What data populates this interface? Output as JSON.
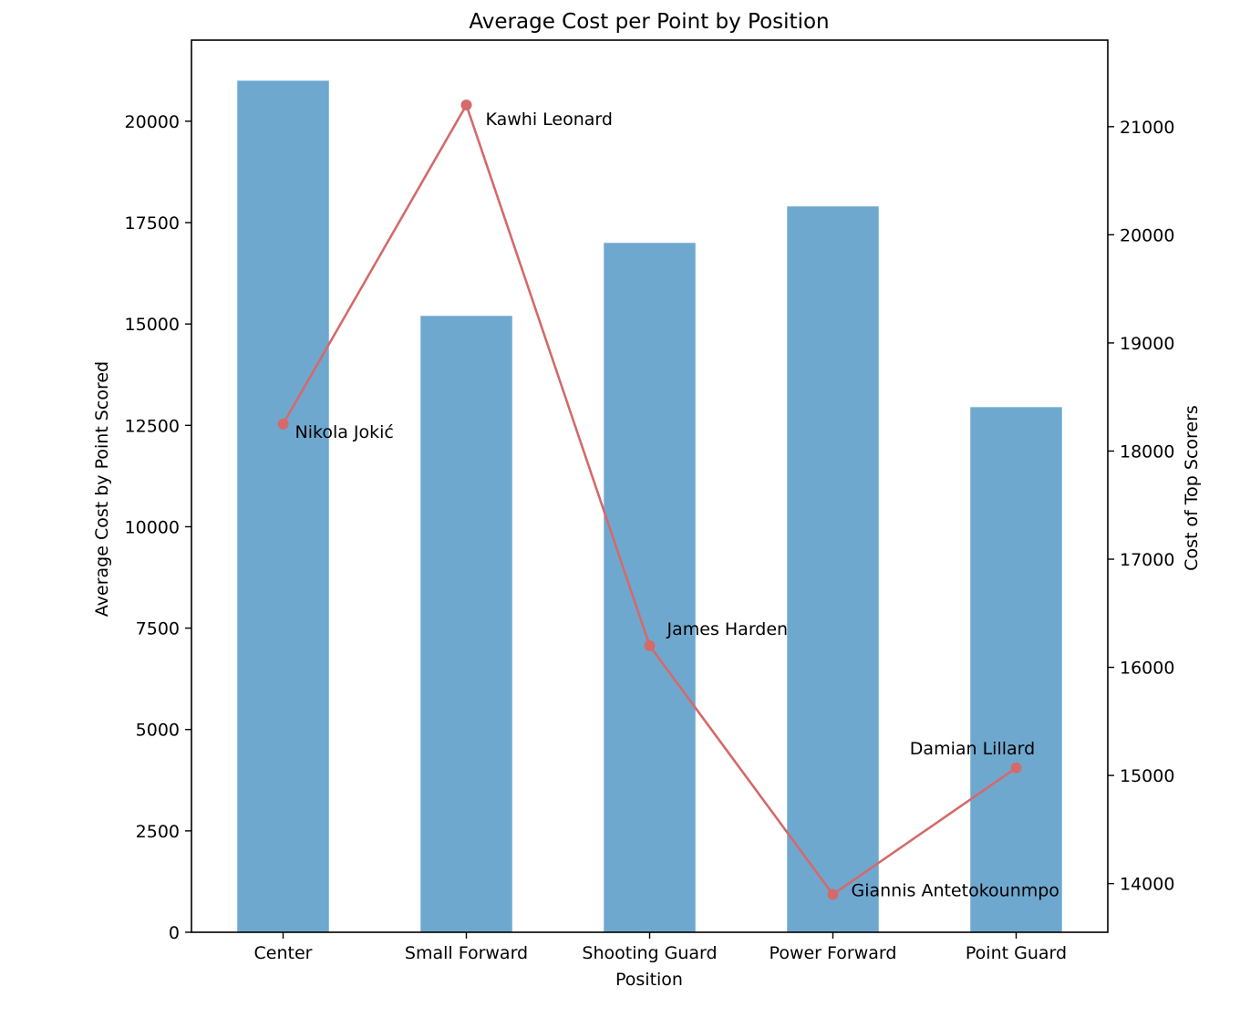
{
  "chart_data": {
    "type": "bar",
    "title": "Average Cost per Point by Position",
    "xlabel": "Position",
    "ylabel": "Average Cost by Point Scored",
    "y2label": "Cost of Top Scorers",
    "categories": [
      "Center",
      "Small Forward",
      "Shooting Guard",
      "Power Forward",
      "Point Guard"
    ],
    "ylim": [
      0,
      22000
    ],
    "y2lim": [
      13550,
      21800
    ],
    "yticks": [
      0,
      2500,
      5000,
      7500,
      10000,
      12500,
      15000,
      17500,
      20000
    ],
    "y2ticks": [
      14000,
      15000,
      16000,
      17000,
      18000,
      19000,
      20000,
      21000
    ],
    "grid": false,
    "series": [
      {
        "type": "bar",
        "axis": "left",
        "color": "#6fa8cf",
        "values": [
          21000,
          15200,
          17000,
          17900,
          12950
        ]
      },
      {
        "type": "line",
        "axis": "right",
        "color": "#d46a6a",
        "values": [
          18250,
          21200,
          16200,
          13900,
          15070
        ],
        "point_labels": [
          "Nikola Jokić",
          "Kawhi Leonard",
          "James Harden",
          "Giannis Antetokounmpo",
          "Damian Lillard"
        ]
      }
    ]
  }
}
